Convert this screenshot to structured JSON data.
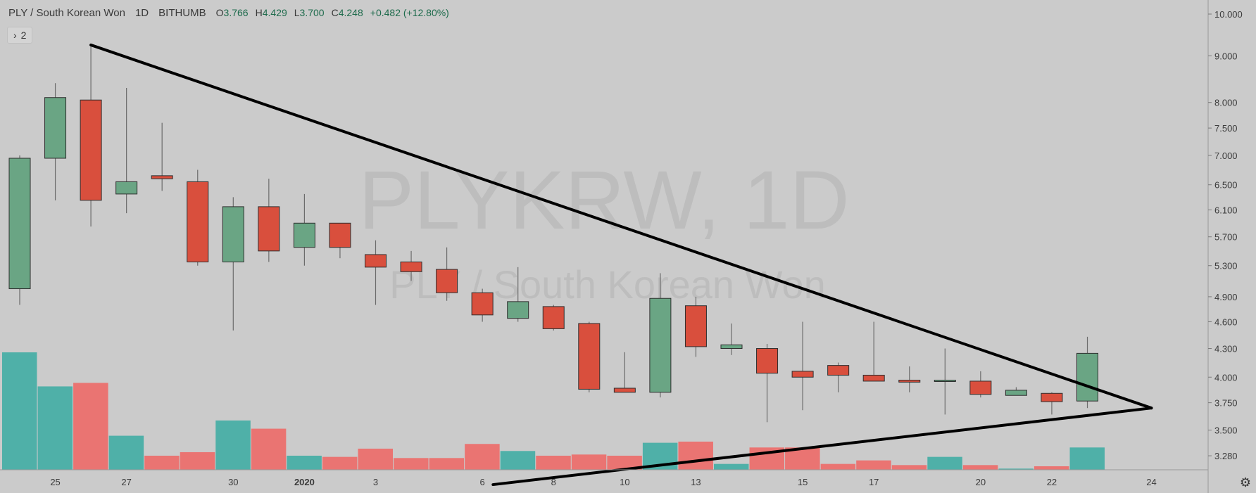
{
  "header": {
    "symbol": "PLY / South Korean Won",
    "timeframe": "1D",
    "exchange": "BITHUMB",
    "open_label": "O",
    "open_value": "3.766",
    "high_label": "H",
    "high_value": "4.429",
    "low_label": "L",
    "low_value": "3.700",
    "close_label": "C",
    "close_value": "4.248",
    "change": "+0.482 (+12.80%)"
  },
  "indicator_toggle": {
    "icon": "chevron-right-icon",
    "count": "2"
  },
  "watermark": {
    "ticker": "PLYKRW, 1D",
    "name": "PLY / South Korean Won"
  },
  "colors": {
    "background": "#cbcbcb",
    "up_candle": "#6aa584",
    "down_candle": "#d94f3d",
    "candle_border": "#2e2e2e",
    "volume_up": "#4fb0a8",
    "volume_down": "#ea7472",
    "trendline": "#000000",
    "watermark": "#bdbdbd",
    "axis_text": "#3a3a3a"
  },
  "settings_icon": "gear-icon",
  "chart_data": {
    "type": "candlestick",
    "scale": "log",
    "ylim": [
      3.2,
      10.0
    ],
    "y_ticks": [
      "10.000",
      "9.000",
      "8.000",
      "7.500",
      "7.000",
      "6.500",
      "6.100",
      "5.700",
      "5.300",
      "4.900",
      "4.600",
      "4.300",
      "4.000",
      "3.750",
      "3.500",
      "3.280"
    ],
    "x_ticks": [
      "25",
      "27",
      "30",
      "2020",
      "3",
      "6",
      "8",
      "10",
      "13",
      "15",
      "17",
      "20",
      "22",
      "24"
    ],
    "candles": [
      {
        "o": 5.0,
        "h": 7.0,
        "l": 4.8,
        "c": 6.95
      },
      {
        "o": 6.95,
        "h": 8.4,
        "l": 6.25,
        "c": 8.1
      },
      {
        "o": 8.05,
        "h": 9.25,
        "l": 5.85,
        "c": 6.25
      },
      {
        "o": 6.35,
        "h": 8.3,
        "l": 6.05,
        "c": 6.55
      },
      {
        "o": 6.65,
        "h": 7.6,
        "l": 6.4,
        "c": 6.6
      },
      {
        "o": 6.55,
        "h": 6.75,
        "l": 5.3,
        "c": 5.35
      },
      {
        "o": 5.35,
        "h": 6.3,
        "l": 4.5,
        "c": 6.15
      },
      {
        "o": 6.15,
        "h": 6.6,
        "l": 5.35,
        "c": 5.5
      },
      {
        "o": 5.55,
        "h": 6.35,
        "l": 5.3,
        "c": 5.9
      },
      {
        "o": 5.9,
        "h": 5.9,
        "l": 5.4,
        "c": 5.55
      },
      {
        "o": 5.45,
        "h": 5.65,
        "l": 4.8,
        "c": 5.28
      },
      {
        "o": 5.35,
        "h": 5.5,
        "l": 5.1,
        "c": 5.22
      },
      {
        "o": 5.25,
        "h": 5.55,
        "l": 4.85,
        "c": 4.95
      },
      {
        "o": 4.95,
        "h": 5.0,
        "l": 4.6,
        "c": 4.68
      },
      {
        "o": 4.64,
        "h": 5.28,
        "l": 4.6,
        "c": 4.84
      },
      {
        "o": 4.78,
        "h": 4.8,
        "l": 4.5,
        "c": 4.52
      },
      {
        "o": 4.58,
        "h": 4.6,
        "l": 3.85,
        "c": 3.88
      },
      {
        "o": 3.89,
        "h": 4.26,
        "l": 3.87,
        "c": 3.85
      },
      {
        "o": 3.85,
        "h": 5.2,
        "l": 3.8,
        "c": 4.88
      },
      {
        "o": 4.79,
        "h": 4.9,
        "l": 4.21,
        "c": 4.32
      },
      {
        "o": 4.3,
        "h": 4.58,
        "l": 4.23,
        "c": 4.34
      },
      {
        "o": 4.3,
        "h": 4.35,
        "l": 3.57,
        "c": 4.04
      },
      {
        "o": 4.06,
        "h": 4.6,
        "l": 3.68,
        "c": 4.0
      },
      {
        "o": 4.12,
        "h": 4.15,
        "l": 3.85,
        "c": 4.02
      },
      {
        "o": 4.02,
        "h": 4.6,
        "l": 3.96,
        "c": 3.96
      },
      {
        "o": 3.97,
        "h": 4.11,
        "l": 3.85,
        "c": 3.95
      },
      {
        "o": 3.96,
        "h": 4.3,
        "l": 3.64,
        "c": 3.97
      },
      {
        "o": 3.96,
        "h": 4.06,
        "l": 3.8,
        "c": 3.83
      },
      {
        "o": 3.82,
        "h": 3.9,
        "l": 3.82,
        "c": 3.87
      },
      {
        "o": 3.84,
        "h": 3.85,
        "l": 3.64,
        "c": 3.76
      },
      {
        "o": 3.766,
        "h": 4.429,
        "l": 3.7,
        "c": 4.248
      }
    ],
    "volume": [
      1.0,
      0.71,
      0.74,
      0.29,
      0.12,
      0.15,
      0.42,
      0.35,
      0.12,
      0.11,
      0.18,
      0.1,
      0.1,
      0.22,
      0.16,
      0.12,
      0.13,
      0.12,
      0.23,
      0.24,
      0.05,
      0.19,
      0.19,
      0.05,
      0.08,
      0.04,
      0.11,
      0.04,
      0.01,
      0.03,
      0.19
    ],
    "trendlines": [
      {
        "from": {
          "candle": 2.0,
          "price": 9.25
        },
        "to": {
          "candle": 31.8,
          "price": 3.7
        }
      },
      {
        "from": {
          "candle": 13.3,
          "price": 3.05
        },
        "to": {
          "candle": 31.8,
          "price": 3.7
        }
      }
    ]
  }
}
